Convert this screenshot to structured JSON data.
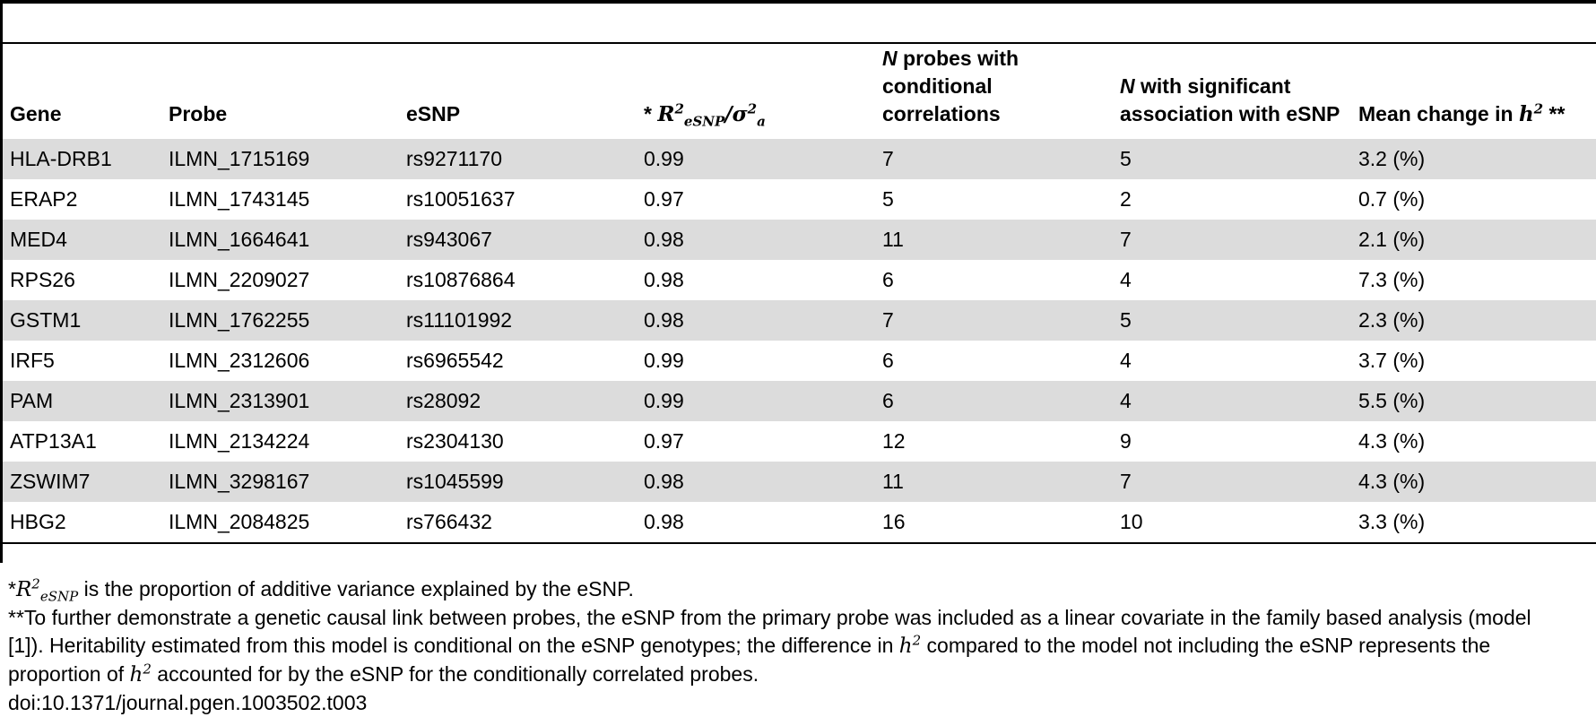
{
  "table": {
    "headers": {
      "gene": "Gene",
      "probe": "Probe",
      "esnp": "eSNP",
      "r2_prefix": "* ",
      "r2_symbol": "R",
      "r2_sup": "2",
      "r2_sub": "eSNP",
      "r2_sep": "/σ",
      "r2_sigma_sup": "2",
      "r2_sigma_sub": "a",
      "nprobes_italic": "N",
      "nprobes_rest": " probes with conditional correlations",
      "nsig_italic": "N",
      "nsig_rest": " with significant association with eSNP",
      "mean_text": "Mean change in ",
      "mean_h": "h",
      "mean_sup": "2",
      "mean_suffix": " **"
    },
    "rows": [
      {
        "gene": "HLA-DRB1",
        "probe": "ILMN_1715169",
        "esnp": "rs9271170",
        "r2": "0.99",
        "nprobes": "7",
        "nsig": "5",
        "mean": "3.2 (%)"
      },
      {
        "gene": "ERAP2",
        "probe": "ILMN_1743145",
        "esnp": "rs10051637",
        "r2": "0.97",
        "nprobes": "5",
        "nsig": "2",
        "mean": "0.7 (%)"
      },
      {
        "gene": "MED4",
        "probe": "ILMN_1664641",
        "esnp": "rs943067",
        "r2": "0.98",
        "nprobes": "11",
        "nsig": "7",
        "mean": "2.1 (%)"
      },
      {
        "gene": "RPS26",
        "probe": "ILMN_2209027",
        "esnp": "rs10876864",
        "r2": "0.98",
        "nprobes": "6",
        "nsig": "4",
        "mean": "7.3 (%)"
      },
      {
        "gene": "GSTM1",
        "probe": "ILMN_1762255",
        "esnp": "rs11101992",
        "r2": "0.98",
        "nprobes": "7",
        "nsig": "5",
        "mean": "2.3 (%)"
      },
      {
        "gene": "IRF5",
        "probe": "ILMN_2312606",
        "esnp": "rs6965542",
        "r2": "0.99",
        "nprobes": "6",
        "nsig": "4",
        "mean": "3.7 (%)"
      },
      {
        "gene": "PAM",
        "probe": "ILMN_2313901",
        "esnp": "rs28092",
        "r2": "0.99",
        "nprobes": "6",
        "nsig": "4",
        "mean": "5.5 (%)"
      },
      {
        "gene": "ATP13A1",
        "probe": "ILMN_2134224",
        "esnp": "rs2304130",
        "r2": "0.97",
        "nprobes": "12",
        "nsig": "9",
        "mean": "4.3 (%)"
      },
      {
        "gene": "ZSWIM7",
        "probe": "ILMN_3298167",
        "esnp": "rs1045599",
        "r2": "0.98",
        "nprobes": "11",
        "nsig": "7",
        "mean": "4.3 (%)"
      },
      {
        "gene": "HBG2",
        "probe": "ILMN_2084825",
        "esnp": "rs766432",
        "r2": "0.98",
        "nprobes": "16",
        "nsig": "10",
        "mean": "3.3 (%)"
      }
    ]
  },
  "footnotes": {
    "note1_star": "*",
    "note1_symbol": "R",
    "note1_sup": "2",
    "note1_sub": "eSNP",
    "note1_text": " is the proportion of additive variance explained by the eSNP.",
    "note2_line1": "**To further demonstrate a genetic causal link between probes, the eSNP from the primary probe was included as a linear covariate in the family based analysis (model",
    "note2_line2a": "[1]). Heritability estimated from this model is conditional on the eSNP genotypes; the difference in ",
    "note2_h": "h",
    "note2_sup": "2",
    "note2_line2b": " compared to the model not including the eSNP represents the",
    "note2_line3a": "proportion of ",
    "note2_line3_h": "h",
    "note2_line3_sup": "2",
    "note2_line3b": " accounted for by the eSNP for the conditionally correlated probes.",
    "doi": "doi:10.1371/journal.pgen.1003502.t003"
  }
}
